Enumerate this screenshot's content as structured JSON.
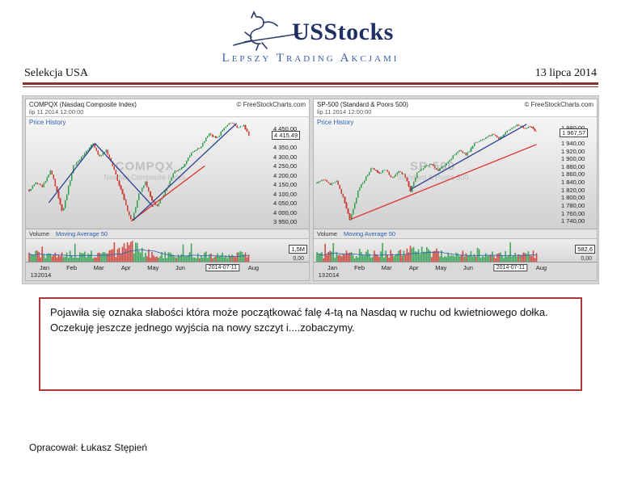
{
  "page": {
    "logo_text": "USStocks",
    "tagline": "Lepszy Trading Akcjami",
    "header_left": "Selekcja USA",
    "header_right": "13 lipca 2014",
    "commentary": "Pojawiła się oznaka słabości która może początkować falę 4-tą na Nasdaq w ruchu od kwietniowego dołka. Oczekuję jeszcze jednego wyjścia na nowy szczyt i....zobaczymy.",
    "footer": "Opracował: Łukasz Stępień",
    "accent_color": "#8c2f2f"
  },
  "chart_data": [
    {
      "type": "candlestick",
      "title": "COMPQX (Nasdaq Composite Index)",
      "subtitle": "lip 11 2014 12:00:00",
      "copyright": "© FreeStockCharts.com",
      "pane_label": "Price History",
      "watermark_line1": "COMPQX",
      "watermark_line2": "Nasdaq Composite Index",
      "volume_label": "Volume",
      "volume_ma_label": "Moving Average 50",
      "volume_box_label": "1,5M",
      "volume_zero_label": "0,00",
      "last_price": 4415.49,
      "last_price_label": "4 415,49",
      "last_date_label": "2014-07-11",
      "date_box_pos": 0.82,
      "y_range": [
        3925,
        4500
      ],
      "y_ticks": [
        {
          "v": 4450,
          "label": "4 450,00"
        },
        {
          "v": 4350,
          "label": "4 350,00"
        },
        {
          "v": 4300,
          "label": "4 300,00"
        },
        {
          "v": 4250,
          "label": "4 250,00"
        },
        {
          "v": 4200,
          "label": "4 200,00"
        },
        {
          "v": 4150,
          "label": "4 150,00"
        },
        {
          "v": 4100,
          "label": "4 100,00"
        },
        {
          "v": 4050,
          "label": "4 050,00"
        },
        {
          "v": 4000,
          "label": "4 000,00"
        },
        {
          "v": 3950,
          "label": "3 950,00"
        }
      ],
      "x_ticks": [
        {
          "pos": 0.065,
          "label": "Jan"
        },
        {
          "pos": 0.18,
          "label": "Feb"
        },
        {
          "pos": 0.295,
          "label": "Mar"
        },
        {
          "pos": 0.41,
          "label": "Apr"
        },
        {
          "pos": 0.525,
          "label": "May"
        },
        {
          "pos": 0.64,
          "label": "Jun"
        },
        {
          "pos": 0.95,
          "label": "Aug"
        }
      ],
      "year_ticks": [
        {
          "pos": 0.02,
          "label": "13"
        },
        {
          "pos": 0.065,
          "label": "2014"
        }
      ],
      "price_anchors": [
        [
          0,
          4120
        ],
        [
          0.03,
          4160
        ],
        [
          0.06,
          4138
        ],
        [
          0.1,
          4228
        ],
        [
          0.13,
          4098
        ],
        [
          0.152,
          3996
        ],
        [
          0.2,
          4246
        ],
        [
          0.25,
          4310
        ],
        [
          0.29,
          4371
        ],
        [
          0.32,
          4296
        ],
        [
          0.35,
          4336
        ],
        [
          0.38,
          4252
        ],
        [
          0.42,
          4116
        ],
        [
          0.45,
          4000
        ],
        [
          0.468,
          3950
        ],
        [
          0.5,
          4096
        ],
        [
          0.53,
          4162
        ],
        [
          0.555,
          4076
        ],
        [
          0.58,
          4030
        ],
        [
          0.62,
          4110
        ],
        [
          0.66,
          4216
        ],
        [
          0.7,
          4242
        ],
        [
          0.74,
          4322
        ],
        [
          0.78,
          4352
        ],
        [
          0.82,
          4424
        ],
        [
          0.855,
          4398
        ],
        [
          0.89,
          4462
        ],
        [
          0.92,
          4486
        ],
        [
          0.95,
          4452
        ],
        [
          0.975,
          4472
        ],
        [
          1,
          4415.49
        ]
      ],
      "trend_lines": [
        {
          "color": "#2a3f8f",
          "from": [
            0.09,
            4052
          ],
          "to": [
            0.3,
            4372
          ]
        },
        {
          "color": "#2a3f8f",
          "from": [
            0.3,
            4372
          ],
          "to": [
            0.565,
            4030
          ]
        },
        {
          "color": "#e03028",
          "from": [
            0.465,
            3952
          ],
          "to": [
            0.8,
            4250
          ]
        },
        {
          "color": "#2a3f8f",
          "from": [
            0.475,
            3958
          ],
          "to": [
            0.945,
            4480
          ]
        }
      ]
    },
    {
      "type": "candlestick",
      "title": "SP-500 (Standard & Poors 500)",
      "subtitle": "lip 11 2014 12:00:00",
      "copyright": "© FreeStockCharts.com",
      "pane_label": "Price History",
      "watermark_line1": "SP-500",
      "watermark_line2": "Standard & Poors 500",
      "volume_label": "Volume",
      "volume_ma_label": "Moving Average 50",
      "volume_box_label": "582,6",
      "volume_zero_label": "0,00",
      "last_price": 1967.57,
      "last_price_label": "1 967,57",
      "last_date_label": "2014-07-11",
      "date_box_pos": 0.82,
      "y_range": [
        1726,
        2000
      ],
      "y_ticks": [
        {
          "v": 1980,
          "label": "1 980,00"
        },
        {
          "v": 1940,
          "label": "1 940,00"
        },
        {
          "v": 1920,
          "label": "1 920,00"
        },
        {
          "v": 1900,
          "label": "1 900,00"
        },
        {
          "v": 1880,
          "label": "1 880,00"
        },
        {
          "v": 1860,
          "label": "1 860,00"
        },
        {
          "v": 1840,
          "label": "1 840,00"
        },
        {
          "v": 1820,
          "label": "1 820,00"
        },
        {
          "v": 1800,
          "label": "1 800,00"
        },
        {
          "v": 1780,
          "label": "1 780,00"
        },
        {
          "v": 1760,
          "label": "1 760,00"
        },
        {
          "v": 1740,
          "label": "1 740,00"
        }
      ],
      "x_ticks": [
        {
          "pos": 0.065,
          "label": "Jan"
        },
        {
          "pos": 0.18,
          "label": "Feb"
        },
        {
          "pos": 0.295,
          "label": "Mar"
        },
        {
          "pos": 0.41,
          "label": "Apr"
        },
        {
          "pos": 0.525,
          "label": "May"
        },
        {
          "pos": 0.64,
          "label": "Jun"
        },
        {
          "pos": 0.95,
          "label": "Aug"
        }
      ],
      "year_ticks": [
        {
          "pos": 0.02,
          "label": "13"
        },
        {
          "pos": 0.065,
          "label": "2014"
        }
      ],
      "price_anchors": [
        [
          0,
          1838
        ],
        [
          0.03,
          1846
        ],
        [
          0.06,
          1832
        ],
        [
          0.09,
          1842
        ],
        [
          0.12,
          1800
        ],
        [
          0.15,
          1742
        ],
        [
          0.19,
          1822
        ],
        [
          0.22,
          1848
        ],
        [
          0.25,
          1878
        ],
        [
          0.28,
          1860
        ],
        [
          0.31,
          1874
        ],
        [
          0.34,
          1846
        ],
        [
          0.37,
          1866
        ],
        [
          0.4,
          1858
        ],
        [
          0.425,
          1816
        ],
        [
          0.455,
          1864
        ],
        [
          0.49,
          1878
        ],
        [
          0.52,
          1886
        ],
        [
          0.55,
          1868
        ],
        [
          0.58,
          1884
        ],
        [
          0.61,
          1900
        ],
        [
          0.65,
          1924
        ],
        [
          0.68,
          1908
        ],
        [
          0.72,
          1942
        ],
        [
          0.76,
          1952
        ],
        [
          0.8,
          1962
        ],
        [
          0.83,
          1950
        ],
        [
          0.87,
          1972
        ],
        [
          0.91,
          1986
        ],
        [
          0.95,
          1978
        ],
        [
          0.975,
          1982
        ],
        [
          1,
          1967.57
        ]
      ],
      "trend_lines": [
        {
          "color": "#e03028",
          "from": [
            0.155,
            1744
          ],
          "to": [
            1.0,
            1936
          ]
        },
        {
          "color": "#2a3f8f",
          "from": [
            0.425,
            1820
          ],
          "to": [
            0.955,
            1988
          ]
        }
      ]
    }
  ]
}
